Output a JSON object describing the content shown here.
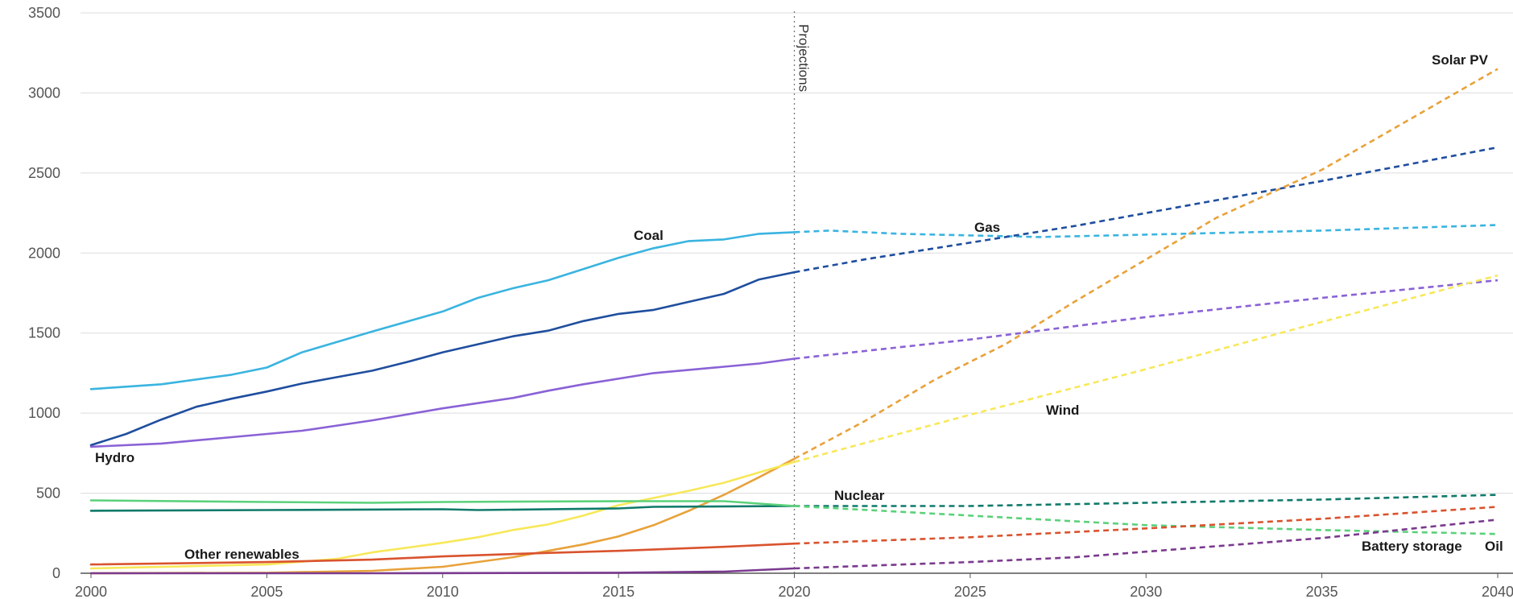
{
  "chart_data": {
    "type": "line",
    "title": "",
    "xlabel": "",
    "ylabel": "",
    "xlim": [
      2000,
      2040
    ],
    "ylim": [
      0,
      3500
    ],
    "grid": true,
    "x_ticks": [
      "2000",
      "2005",
      "2010",
      "2015",
      "2020",
      "2025",
      "2030",
      "2035",
      "2040"
    ],
    "y_ticks": [
      "0",
      "500",
      "1000",
      "1500",
      "2000",
      "2500",
      "3000",
      "3500"
    ],
    "projection_start": 2020,
    "projection_label": "Projections",
    "series": [
      {
        "name": "Coal",
        "color": "#3ab4e0",
        "points": [
          [
            2000,
            1150
          ],
          [
            2002,
            1180
          ],
          [
            2004,
            1240
          ],
          [
            2005,
            1285
          ],
          [
            2006,
            1380
          ],
          [
            2008,
            1510
          ],
          [
            2010,
            1635
          ],
          [
            2011,
            1720
          ],
          [
            2012,
            1780
          ],
          [
            2013,
            1830
          ],
          [
            2014,
            1900
          ],
          [
            2015,
            1970
          ],
          [
            2016,
            2030
          ],
          [
            2017,
            2075
          ],
          [
            2018,
            2085
          ],
          [
            2019,
            2120
          ],
          [
            2020,
            2130
          ],
          [
            2021,
            2140
          ],
          [
            2023,
            2120
          ],
          [
            2025,
            2110
          ],
          [
            2027,
            2100
          ],
          [
            2030,
            2115
          ],
          [
            2035,
            2140
          ],
          [
            2040,
            2175
          ]
        ]
      },
      {
        "name": "Gas",
        "color": "#1f4e9e",
        "points": [
          [
            2000,
            800
          ],
          [
            2001,
            870
          ],
          [
            2002,
            960
          ],
          [
            2003,
            1040
          ],
          [
            2004,
            1090
          ],
          [
            2005,
            1135
          ],
          [
            2006,
            1185
          ],
          [
            2008,
            1265
          ],
          [
            2009,
            1320
          ],
          [
            2010,
            1380
          ],
          [
            2011,
            1430
          ],
          [
            2012,
            1480
          ],
          [
            2013,
            1515
          ],
          [
            2014,
            1575
          ],
          [
            2015,
            1620
          ],
          [
            2016,
            1645
          ],
          [
            2017,
            1695
          ],
          [
            2018,
            1745
          ],
          [
            2019,
            1835
          ],
          [
            2020,
            1880
          ],
          [
            2022,
            1960
          ],
          [
            2025,
            2065
          ],
          [
            2028,
            2170
          ],
          [
            2030,
            2250
          ],
          [
            2035,
            2450
          ],
          [
            2040,
            2660
          ]
        ]
      },
      {
        "name": "Hydro",
        "color": "#8a62d6",
        "points": [
          [
            2000,
            790
          ],
          [
            2002,
            810
          ],
          [
            2004,
            850
          ],
          [
            2006,
            890
          ],
          [
            2008,
            955
          ],
          [
            2010,
            1030
          ],
          [
            2012,
            1095
          ],
          [
            2013,
            1140
          ],
          [
            2014,
            1180
          ],
          [
            2016,
            1250
          ],
          [
            2018,
            1290
          ],
          [
            2019,
            1310
          ],
          [
            2020,
            1340
          ],
          [
            2025,
            1460
          ],
          [
            2030,
            1600
          ],
          [
            2035,
            1720
          ],
          [
            2040,
            1830
          ]
        ]
      },
      {
        "name": "Solar PV",
        "color": "#e8a23a",
        "points": [
          [
            2000,
            0
          ],
          [
            2005,
            3
          ],
          [
            2008,
            15
          ],
          [
            2010,
            40
          ],
          [
            2012,
            100
          ],
          [
            2013,
            140
          ],
          [
            2014,
            180
          ],
          [
            2015,
            230
          ],
          [
            2016,
            300
          ],
          [
            2017,
            390
          ],
          [
            2018,
            490
          ],
          [
            2019,
            600
          ],
          [
            2020,
            715
          ],
          [
            2022,
            950
          ],
          [
            2024,
            1210
          ],
          [
            2026,
            1430
          ],
          [
            2028,
            1700
          ],
          [
            2030,
            1960
          ],
          [
            2032,
            2220
          ],
          [
            2035,
            2520
          ],
          [
            2040,
            3150
          ]
        ]
      },
      {
        "name": "Wind",
        "color": "#f7e85a",
        "points": [
          [
            2000,
            30
          ],
          [
            2005,
            55
          ],
          [
            2007,
            90
          ],
          [
            2008,
            130
          ],
          [
            2010,
            190
          ],
          [
            2011,
            225
          ],
          [
            2012,
            270
          ],
          [
            2013,
            305
          ],
          [
            2014,
            360
          ],
          [
            2015,
            425
          ],
          [
            2016,
            470
          ],
          [
            2017,
            515
          ],
          [
            2018,
            565
          ],
          [
            2019,
            630
          ],
          [
            2020,
            695
          ],
          [
            2025,
            990
          ],
          [
            2030,
            1275
          ],
          [
            2035,
            1570
          ],
          [
            2040,
            1860
          ]
        ]
      },
      {
        "name": "Nuclear",
        "color": "#0f7a6a",
        "points": [
          [
            2000,
            390
          ],
          [
            2005,
            395
          ],
          [
            2010,
            400
          ],
          [
            2011,
            395
          ],
          [
            2015,
            405
          ],
          [
            2016,
            415
          ],
          [
            2020,
            420
          ],
          [
            2022,
            420
          ],
          [
            2025,
            420
          ],
          [
            2030,
            440
          ],
          [
            2035,
            460
          ],
          [
            2040,
            490
          ]
        ]
      },
      {
        "name": "Battery storage",
        "color": "#5bd17a",
        "points": [
          [
            2000,
            455
          ],
          [
            2005,
            445
          ],
          [
            2008,
            440
          ],
          [
            2010,
            445
          ],
          [
            2015,
            450
          ],
          [
            2018,
            450
          ],
          [
            2020,
            420
          ],
          [
            2025,
            360
          ],
          [
            2030,
            300
          ],
          [
            2035,
            270
          ],
          [
            2040,
            245
          ]
        ]
      },
      {
        "name": "Other renewables",
        "color": "#d9532e",
        "points": [
          [
            2000,
            55
          ],
          [
            2005,
            70
          ],
          [
            2008,
            85
          ],
          [
            2010,
            105
          ],
          [
            2012,
            120
          ],
          [
            2015,
            140
          ],
          [
            2018,
            165
          ],
          [
            2020,
            185
          ],
          [
            2025,
            225
          ],
          [
            2030,
            280
          ],
          [
            2035,
            340
          ],
          [
            2040,
            415
          ]
        ]
      },
      {
        "name": "Oil",
        "color": "#7a3a8e",
        "points": [
          [
            2000,
            0
          ],
          [
            2008,
            0
          ],
          [
            2015,
            3
          ],
          [
            2018,
            10
          ],
          [
            2020,
            30
          ],
          [
            2025,
            70
          ],
          [
            2028,
            100
          ],
          [
            2030,
            135
          ],
          [
            2035,
            220
          ],
          [
            2040,
            335
          ]
        ]
      }
    ]
  }
}
